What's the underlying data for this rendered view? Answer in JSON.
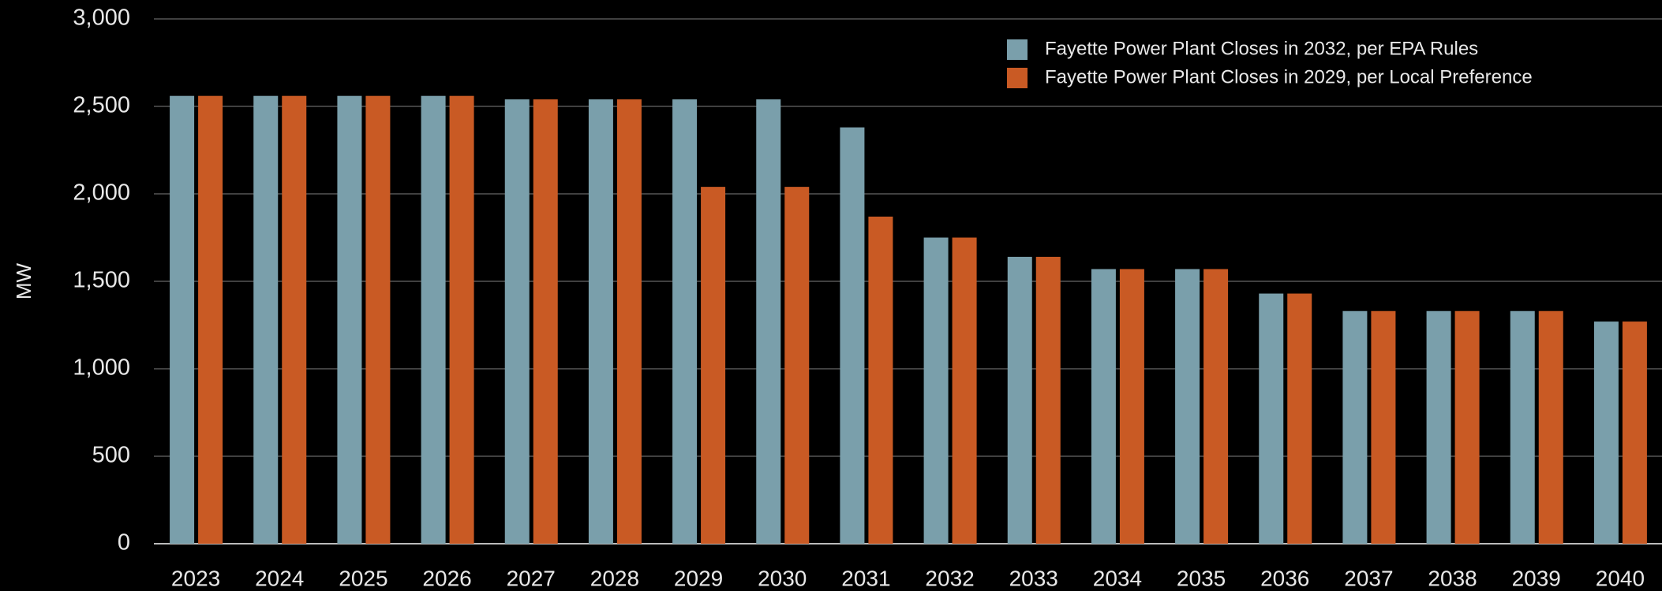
{
  "chart_data": {
    "type": "bar",
    "ylabel": "MW",
    "categories": [
      "2023",
      "2024",
      "2025",
      "2026",
      "2027",
      "2028",
      "2029",
      "2030",
      "2031",
      "2032",
      "2033",
      "2034",
      "2035",
      "2036",
      "2037",
      "2038",
      "2039",
      "2040"
    ],
    "series": [
      {
        "name": "Fayette Power Plant Closes in 2032, per EPA Rules",
        "color": "#7a9fab",
        "values": [
          2560,
          2560,
          2560,
          2560,
          2540,
          2540,
          2540,
          2540,
          2380,
          1750,
          1640,
          1570,
          1570,
          1430,
          1330,
          1330,
          1330,
          1270
        ]
      },
      {
        "name": "Fayette Power Plant Closes in 2029, per Local Preference",
        "color": "#c95a24",
        "values": [
          2560,
          2560,
          2560,
          2560,
          2540,
          2540,
          2040,
          2040,
          1870,
          1750,
          1640,
          1570,
          1570,
          1430,
          1330,
          1330,
          1330,
          1270
        ]
      }
    ],
    "ylim": [
      0,
      3000
    ],
    "yticks": [
      0,
      500,
      {
        "value": 1000,
        "label": "1,000"
      },
      {
        "value": 1500,
        "label": "1,500"
      },
      {
        "value": 2000,
        "label": "2,000"
      },
      {
        "value": 2500,
        "label": "2,500"
      },
      {
        "value": 3000,
        "label": "3,000"
      }
    ],
    "grid": true,
    "legend": "upper right"
  }
}
